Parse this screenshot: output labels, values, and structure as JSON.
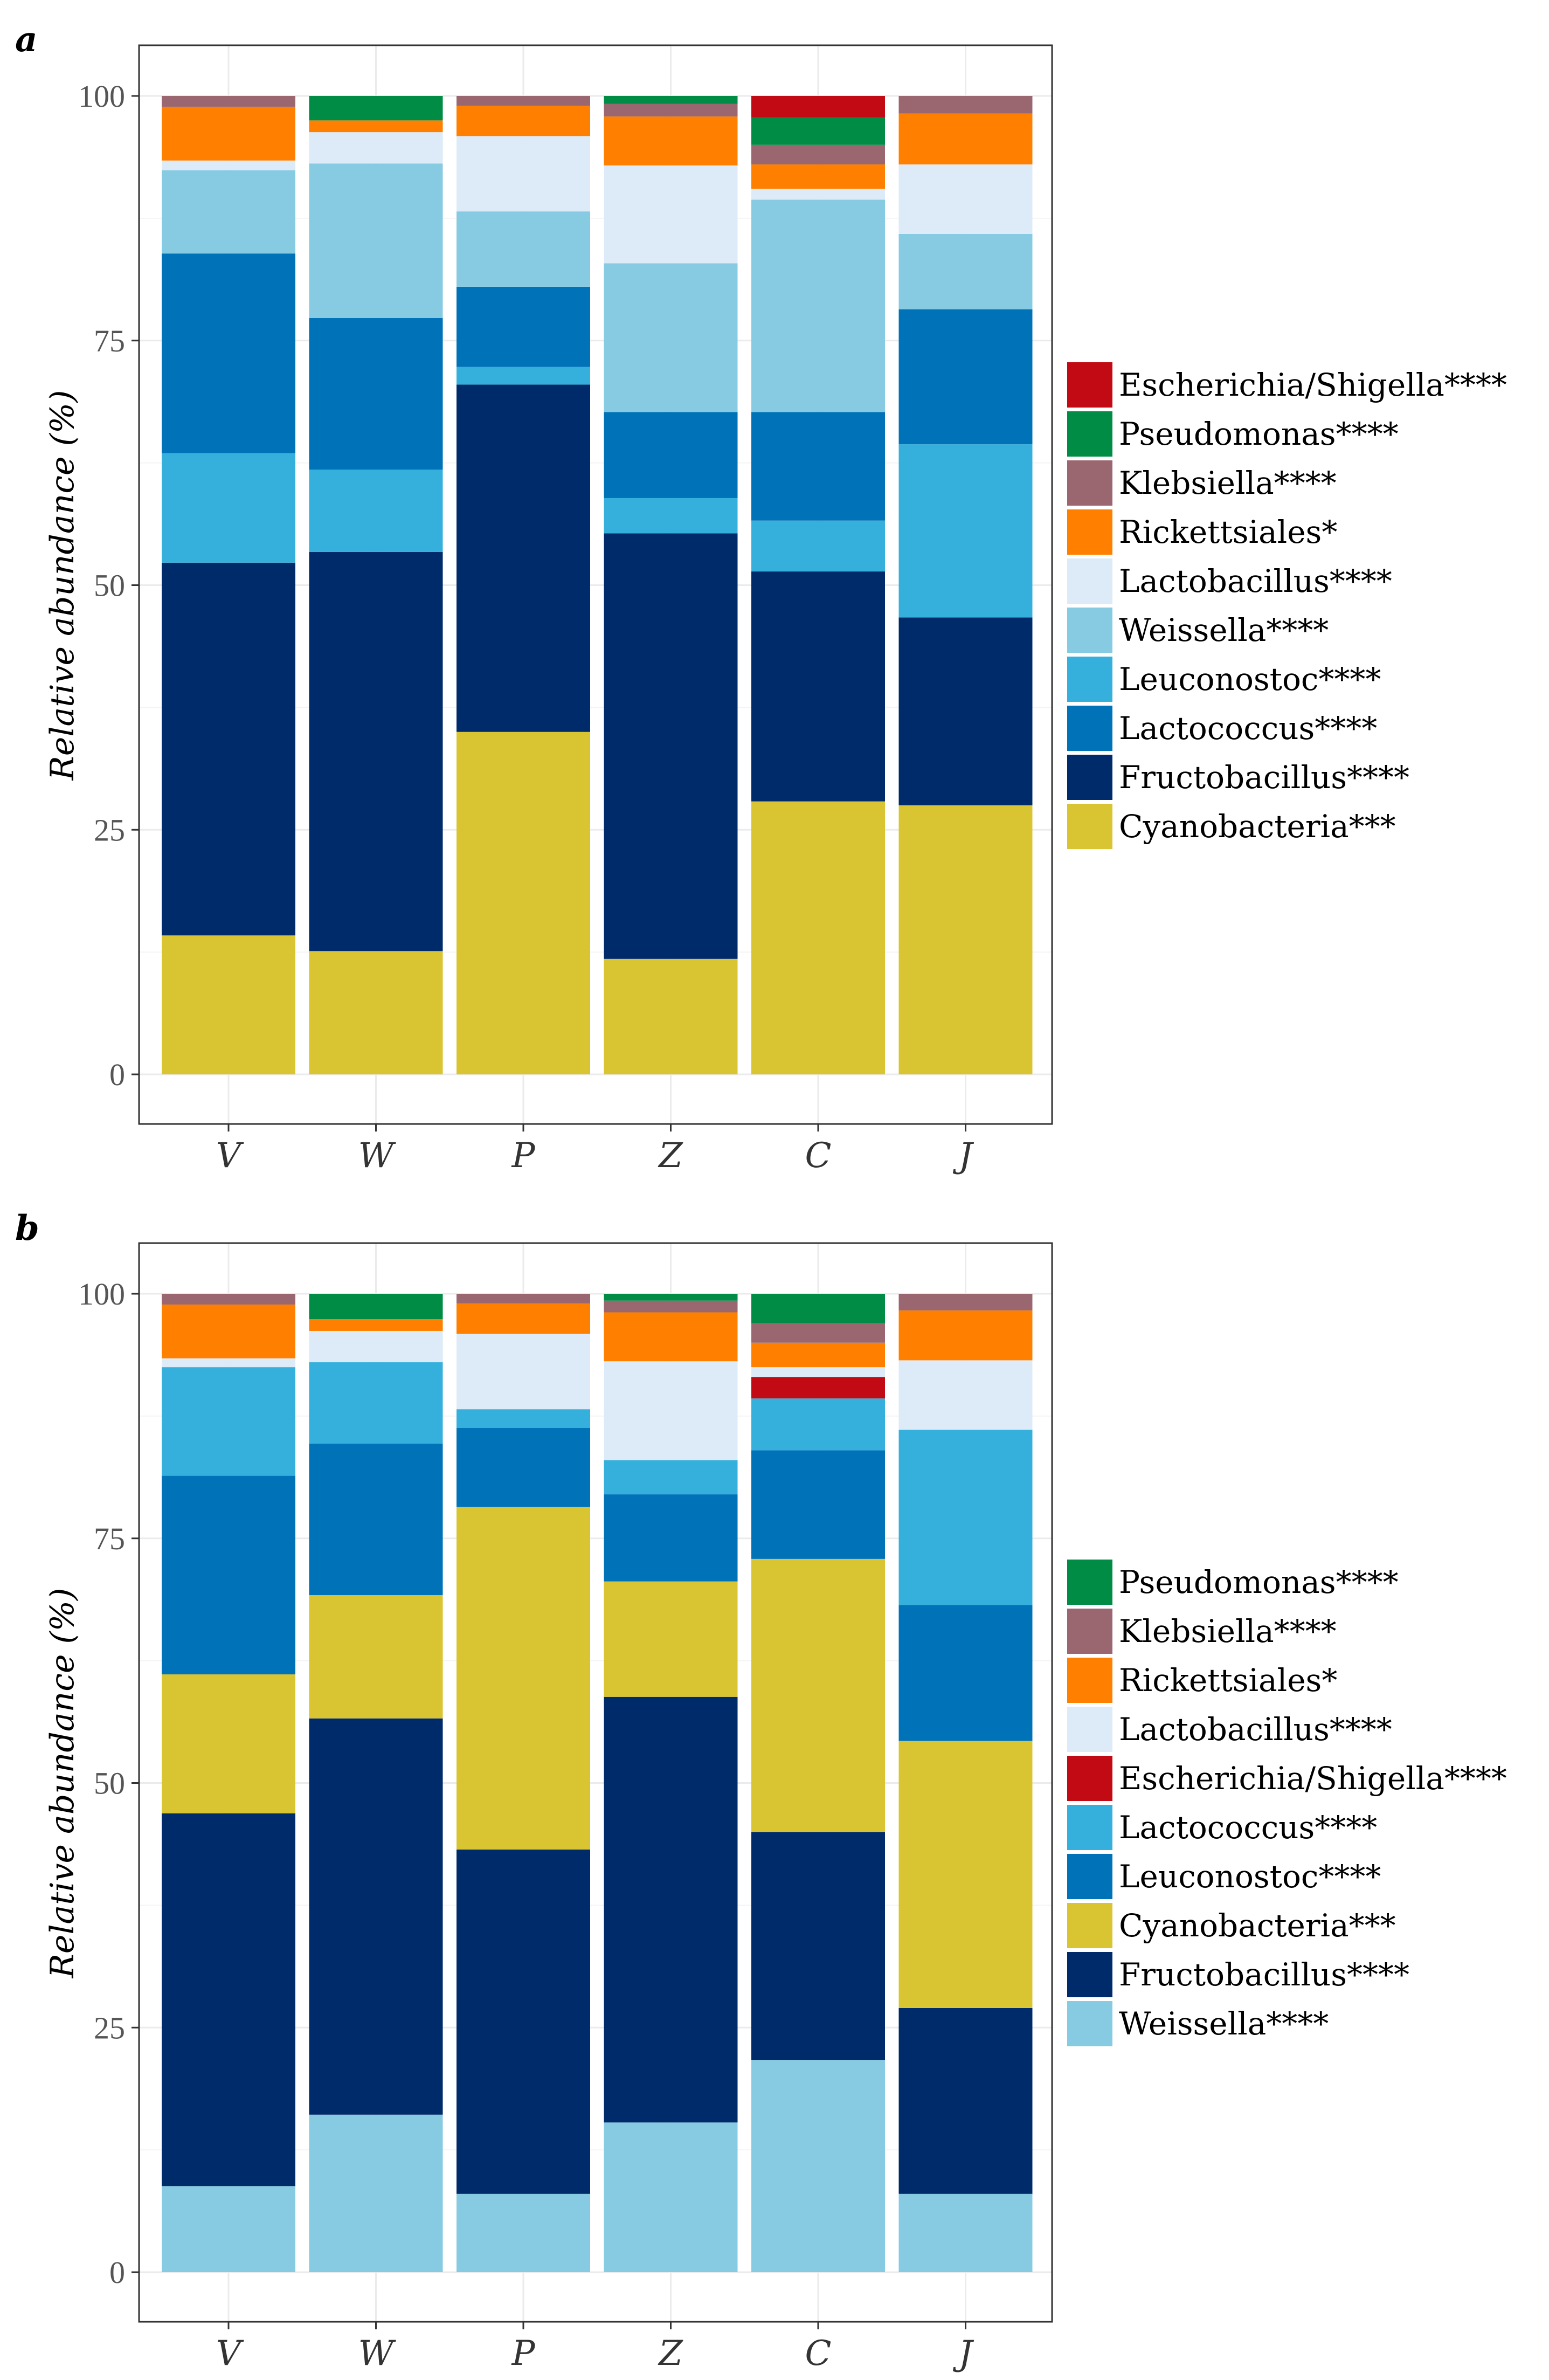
{
  "colors": {
    "Escherichia/Shigella****": "#c20a14",
    "Pseudomonas****": "#008c45",
    "Klebsiella****": "#9a6670",
    "Rickettsiales*": "#ff8000",
    "Lactobacillus****": "#dcebf7",
    "Weissella****": "#87cbe3",
    "Leuconostoc****": "#35b0dc",
    "Lactococcus****": "#0072b8",
    "Fructobacillus****": "#002b6b",
    "Cyanobacteria***": "#d9c431",
    "panel_a_Leuconostoc****": "#35b0dc",
    "panel_a_Lactococcus****": "#0072b8",
    "panel_b_Lactococcus****": "#35b0dc",
    "panel_b_Leuconostoc****": "#0072b8"
  },
  "chart_data": [
    {
      "type": "bar",
      "stacked": true,
      "panel_label": "a",
      "title": "",
      "xlabel": "",
      "ylabel": "Relative abundance (%)",
      "ylim": [
        0,
        100
      ],
      "yticks": [
        "0",
        "25",
        "50",
        "75",
        "100"
      ],
      "grid": true,
      "legend_position": "right",
      "categories": [
        "V",
        "W",
        "P",
        "Z",
        "C",
        "J"
      ],
      "series": [
        {
          "name": "Cyanobacteria***",
          "color": "#d9c431",
          "values": [
            14.2,
            12.6,
            35.0,
            11.8,
            27.9,
            27.5
          ]
        },
        {
          "name": "Fructobacillus****",
          "color": "#002b6b",
          "values": [
            38.1,
            40.8,
            35.5,
            43.5,
            23.5,
            19.2
          ]
        },
        {
          "name": "Leuconostoc****",
          "color": "#35b0dc",
          "values": [
            11.2,
            8.4,
            1.8,
            3.6,
            5.2,
            17.7
          ]
        },
        {
          "name": "Lactococcus****",
          "color": "#0072b8",
          "values": [
            20.4,
            15.5,
            8.2,
            8.8,
            11.1,
            13.8
          ]
        },
        {
          "name": "Weissella****",
          "color": "#87cbe3",
          "values": [
            8.5,
            15.8,
            7.7,
            15.2,
            21.7,
            7.7
          ]
        },
        {
          "name": "Lactobacillus****",
          "color": "#dcebf7",
          "values": [
            1.0,
            3.2,
            7.7,
            10.0,
            1.1,
            7.1
          ]
        },
        {
          "name": "Rickettsiales*",
          "color": "#ff8000",
          "values": [
            5.5,
            1.2,
            3.1,
            5.0,
            2.5,
            5.2
          ]
        },
        {
          "name": "Klebsiella****",
          "color": "#9a6670",
          "values": [
            1.1,
            0.0,
            1.0,
            1.3,
            2.0,
            1.8
          ]
        },
        {
          "name": "Pseudomonas****",
          "color": "#008c45",
          "values": [
            0.0,
            2.5,
            0.0,
            0.8,
            2.8,
            0.0
          ]
        },
        {
          "name": "Escherichia/Shigella****",
          "color": "#c20a14",
          "values": [
            0.0,
            0.0,
            0.0,
            0.0,
            2.2,
            0.0
          ]
        }
      ],
      "legend_order": [
        "Escherichia/Shigella****",
        "Pseudomonas****",
        "Klebsiella****",
        "Rickettsiales*",
        "Lactobacillus****",
        "Weissella****",
        "Leuconostoc****",
        "Lactococcus****",
        "Fructobacillus****",
        "Cyanobacteria***"
      ]
    },
    {
      "type": "bar",
      "stacked": true,
      "panel_label": "b",
      "title": "",
      "xlabel": "",
      "ylabel": "Relative abundance (%)",
      "ylim": [
        0,
        100
      ],
      "yticks": [
        "0",
        "25",
        "50",
        "75",
        "100"
      ],
      "grid": true,
      "legend_position": "right",
      "categories": [
        "V",
        "W",
        "P",
        "Z",
        "C",
        "J"
      ],
      "series": [
        {
          "name": "Weissella****",
          "color": "#87cbe3",
          "values": [
            8.8,
            16.1,
            8.0,
            15.3,
            21.7,
            8.0
          ]
        },
        {
          "name": "Fructobacillus****",
          "color": "#002b6b",
          "values": [
            38.1,
            40.5,
            35.2,
            43.5,
            23.3,
            19.0
          ]
        },
        {
          "name": "Cyanobacteria***",
          "color": "#d9c431",
          "values": [
            14.2,
            12.6,
            35.0,
            11.8,
            27.9,
            27.3
          ]
        },
        {
          "name": "Leuconostoc****",
          "color": "#0072b8",
          "values": [
            20.3,
            15.5,
            8.1,
            8.9,
            11.1,
            13.9
          ]
        },
        {
          "name": "Lactococcus****",
          "color": "#35b0dc",
          "values": [
            11.1,
            8.3,
            1.9,
            3.5,
            5.3,
            17.9
          ]
        },
        {
          "name": "Escherichia/Shigella****",
          "color": "#c20a14",
          "values": [
            0.0,
            0.0,
            0.0,
            0.0,
            2.2,
            0.0
          ]
        },
        {
          "name": "Lactobacillus****",
          "color": "#dcebf7",
          "values": [
            0.9,
            3.2,
            7.7,
            10.1,
            1.0,
            7.1
          ]
        },
        {
          "name": "Rickettsiales*",
          "color": "#ff8000",
          "values": [
            5.5,
            1.2,
            3.1,
            5.0,
            2.5,
            5.1
          ]
        },
        {
          "name": "Klebsiella****",
          "color": "#9a6670",
          "values": [
            1.1,
            0.0,
            1.0,
            1.2,
            2.0,
            1.7
          ]
        },
        {
          "name": "Pseudomonas****",
          "color": "#008c45",
          "values": [
            0.0,
            2.6,
            0.0,
            0.7,
            3.0,
            0.0
          ]
        }
      ],
      "legend_order": [
        "Pseudomonas****",
        "Klebsiella****",
        "Rickettsiales*",
        "Lactobacillus****",
        "Escherichia/Shigella****",
        "Lactococcus****",
        "Leuconostoc****",
        "Cyanobacteria***",
        "Fructobacillus****",
        "Weissella****"
      ]
    }
  ]
}
